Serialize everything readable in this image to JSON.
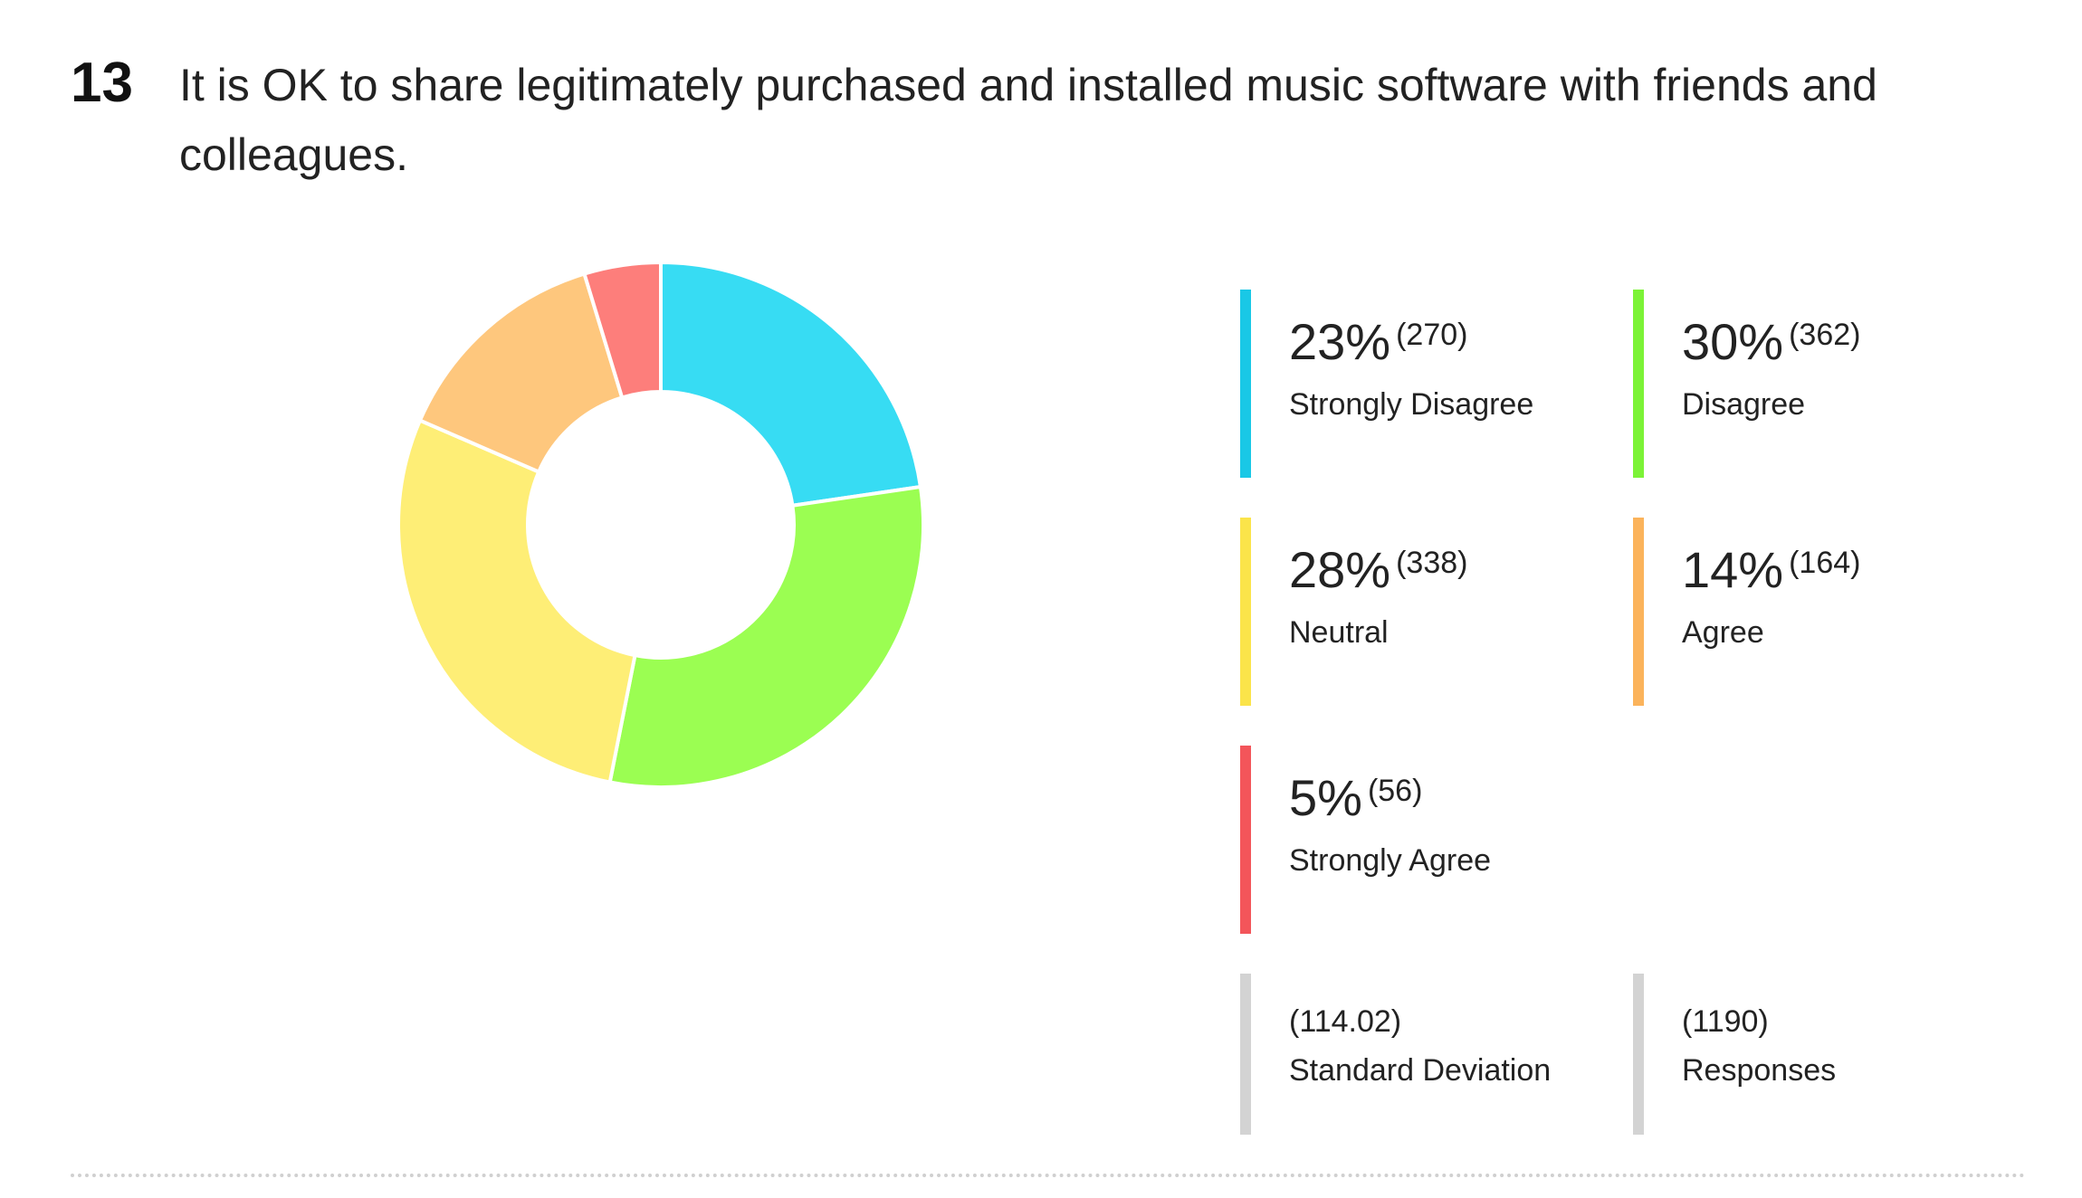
{
  "question": {
    "number": "13",
    "text": "It is OK to share legitimately purchased and installed music software with friends and colleagues."
  },
  "chart_data": {
    "type": "pie",
    "donut": true,
    "slices": [
      {
        "label": "Strongly Disagree",
        "percent": "23%",
        "count": "(270)",
        "value": 270,
        "color": "#37dcf3"
      },
      {
        "label": "Disagree",
        "percent": "30%",
        "count": "(362)",
        "value": 362,
        "color": "#9bfe52"
      },
      {
        "label": "Neutral",
        "percent": "28%",
        "count": "(338)",
        "value": 338,
        "color": "#feee76"
      },
      {
        "label": "Agree",
        "percent": "14%",
        "count": "(164)",
        "value": 164,
        "color": "#fec77d"
      },
      {
        "label": "Strongly Agree",
        "percent": "5%",
        "count": "(56)",
        "value": 56,
        "color": "#fd7e7b"
      }
    ],
    "legend_bar_colors": [
      "#19c8e6",
      "#7cf337",
      "#fbe44a",
      "#fbb35b",
      "#f3555a"
    ],
    "stats": [
      {
        "value": "(114.02)",
        "label": "Standard Deviation"
      },
      {
        "value": "(1190)",
        "label": "Responses"
      }
    ],
    "stat_bar_color": "#d3d3d3"
  }
}
